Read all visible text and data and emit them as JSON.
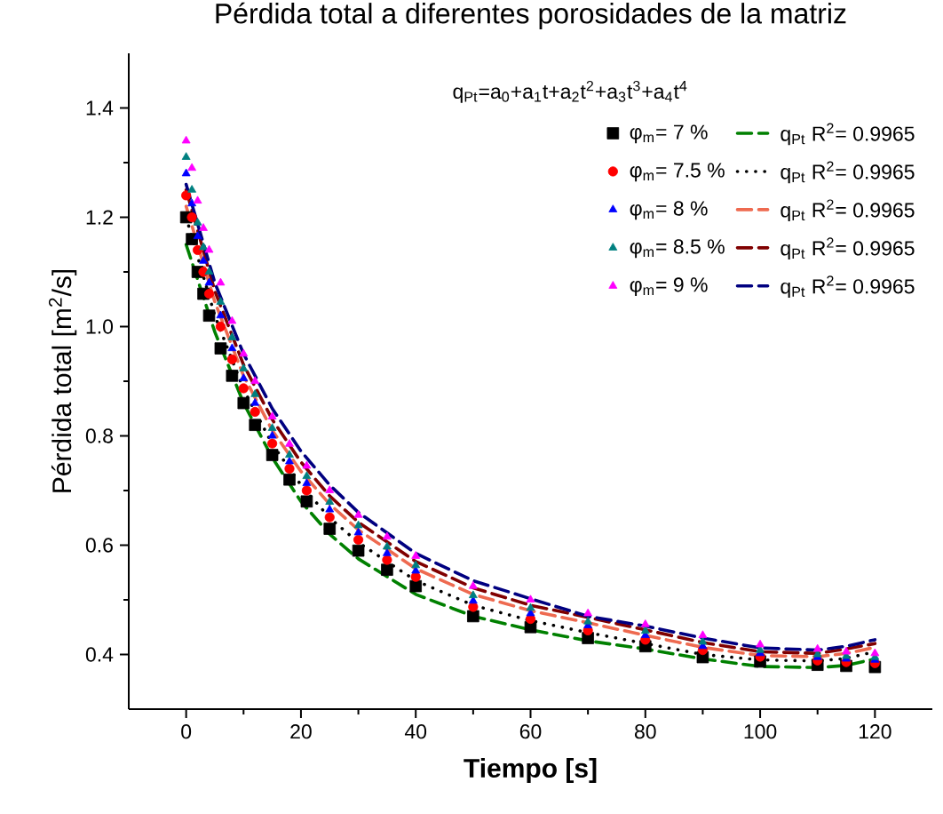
{
  "chart_data": {
    "type": "scatter",
    "title": "Pérdida total a diferentes porosidades de la matriz",
    "xlabel": "Tiempo [s]",
    "ylabel": "Pérdida total [m$^{2}$/s]",
    "legend_title": "q$_{Pt}$=a$_{0}$+a$_{1}$t+a$_{2}$t$^{2}$+a$_{3}$t$^{3}$+a$_{4}$t$^{4}$",
    "xlim": [
      -10,
      130
    ],
    "ylim": [
      0.3,
      1.5
    ],
    "xticks": [
      0,
      20,
      40,
      60,
      80,
      100,
      120
    ],
    "yticks": [
      0.4,
      0.6,
      0.8,
      {
        "value": 1,
        "label": "1.0"
      },
      1.2,
      1.4
    ],
    "legend": "top right",
    "x": [
      0,
      1,
      2,
      3,
      4,
      6,
      8,
      10,
      12,
      15,
      18,
      21,
      25,
      30,
      35,
      40,
      50,
      60,
      70,
      80,
      90,
      100,
      110,
      115,
      120
    ],
    "series": [
      {
        "name": "φ$_{m}$= 7 %",
        "color": "#000000",
        "marker": "square",
        "values": [
          1.2,
          1.16,
          1.1,
          1.06,
          1.02,
          0.96,
          0.91,
          0.86,
          0.82,
          0.765,
          0.72,
          0.68,
          0.63,
          0.59,
          0.555,
          0.525,
          0.47,
          0.45,
          0.43,
          0.415,
          0.395,
          0.387,
          0.381,
          0.379,
          0.377
        ]
      },
      {
        "name": "q$_{Pt}$   R$^{2}$= 0.9965",
        "type": "line",
        "color": "#008000",
        "line_style": "dashed",
        "x": [
          0,
          5,
          10,
          15,
          20,
          25,
          30,
          40,
          50,
          60,
          70,
          80,
          90,
          100,
          110,
          115,
          120
        ],
        "values": [
          1.15,
          0.99,
          0.86,
          0.76,
          0.68,
          0.62,
          0.575,
          0.51,
          0.47,
          0.445,
          0.425,
          0.41,
          0.392,
          0.378,
          0.376,
          0.38,
          0.392
        ]
      },
      {
        "name": "φ$_{m}$= 7.5 %",
        "color": "#ff0000",
        "marker": "circle",
        "values": [
          1.24,
          1.2,
          1.14,
          1.1,
          1.06,
          1.0,
          0.94,
          0.887,
          0.844,
          0.786,
          0.74,
          0.7,
          0.651,
          0.61,
          0.573,
          0.542,
          0.487,
          0.465,
          0.444,
          0.427,
          0.408,
          0.396,
          0.389,
          0.386,
          0.384
        ]
      },
      {
        "name": "q$_{Pt}$   R$^{2}$= 0.9965",
        "type": "line",
        "color": "#000000",
        "line_style": "dotted",
        "x": [
          0,
          5,
          10,
          15,
          20,
          25,
          30,
          40,
          50,
          60,
          70,
          80,
          90,
          100,
          110,
          115,
          120
        ],
        "values": [
          1.2,
          1.02,
          0.885,
          0.785,
          0.71,
          0.65,
          0.605,
          0.535,
          0.49,
          0.462,
          0.44,
          0.42,
          0.4,
          0.39,
          0.388,
          0.393,
          0.405
        ]
      },
      {
        "name": "φ$_{m}$= 8 %",
        "color": "#0000ff",
        "marker": "triangle",
        "values": [
          1.28,
          1.225,
          1.165,
          1.12,
          1.08,
          1.02,
          0.96,
          0.905,
          0.86,
          0.8,
          0.753,
          0.713,
          0.665,
          0.623,
          0.585,
          0.553,
          0.498,
          0.475,
          0.453,
          0.435,
          0.415,
          0.402,
          0.395,
          0.392,
          0.39
        ]
      },
      {
        "name": "q$_{Pt}$   R$^{2}$= 0.9965",
        "type": "line",
        "color": "#ee6a50",
        "line_style": "dashed",
        "x": [
          0,
          5,
          10,
          15,
          20,
          25,
          30,
          40,
          50,
          60,
          70,
          80,
          90,
          100,
          110,
          115,
          120
        ],
        "values": [
          1.22,
          1.045,
          0.91,
          0.81,
          0.735,
          0.675,
          0.628,
          0.557,
          0.51,
          0.48,
          0.458,
          0.435,
          0.413,
          0.398,
          0.396,
          0.402,
          0.413
        ]
      },
      {
        "name": "φ$_{m}$= 8.5 %",
        "color": "#008080",
        "marker": "triangle",
        "values": [
          1.31,
          1.25,
          1.19,
          1.145,
          1.1,
          1.045,
          0.98,
          0.923,
          0.876,
          0.814,
          0.765,
          0.726,
          0.679,
          0.636,
          0.597,
          0.563,
          0.508,
          0.485,
          0.46,
          0.443,
          0.423,
          0.408,
          0.4,
          0.397,
          0.395
        ]
      },
      {
        "name": "q$_{Pt}$   R$^{2}$= 0.9965",
        "type": "line",
        "color": "#800000",
        "line_style": "dashed",
        "x": [
          0,
          5,
          10,
          15,
          20,
          25,
          30,
          40,
          50,
          60,
          70,
          80,
          90,
          100,
          110,
          115,
          120
        ],
        "values": [
          1.25,
          1.065,
          0.93,
          0.83,
          0.752,
          0.69,
          0.642,
          0.57,
          0.522,
          0.49,
          0.468,
          0.445,
          0.422,
          0.405,
          0.402,
          0.41,
          0.42
        ]
      },
      {
        "name": "φ$_{m}$= 9 %",
        "color": "#ff00ff",
        "marker": "triangle",
        "values": [
          1.34,
          1.29,
          1.23,
          1.18,
          1.14,
          1.08,
          1.01,
          0.95,
          0.9,
          0.835,
          0.785,
          0.745,
          0.7,
          0.655,
          0.615,
          0.58,
          0.525,
          0.5,
          0.475,
          0.455,
          0.435,
          0.418,
          0.41,
          0.405,
          0.402
        ]
      },
      {
        "name": "q$_{Pt}$   R$^{2}$= 0.9965",
        "type": "line",
        "color": "#000080",
        "line_style": "dashed",
        "x": [
          0,
          5,
          10,
          15,
          20,
          25,
          30,
          40,
          50,
          60,
          70,
          80,
          90,
          100,
          110,
          115,
          120
        ],
        "values": [
          1.26,
          1.08,
          0.95,
          0.85,
          0.772,
          0.71,
          0.66,
          0.585,
          0.535,
          0.502,
          0.47,
          0.452,
          0.43,
          0.412,
          0.408,
          0.415,
          0.427
        ]
      }
    ]
  }
}
